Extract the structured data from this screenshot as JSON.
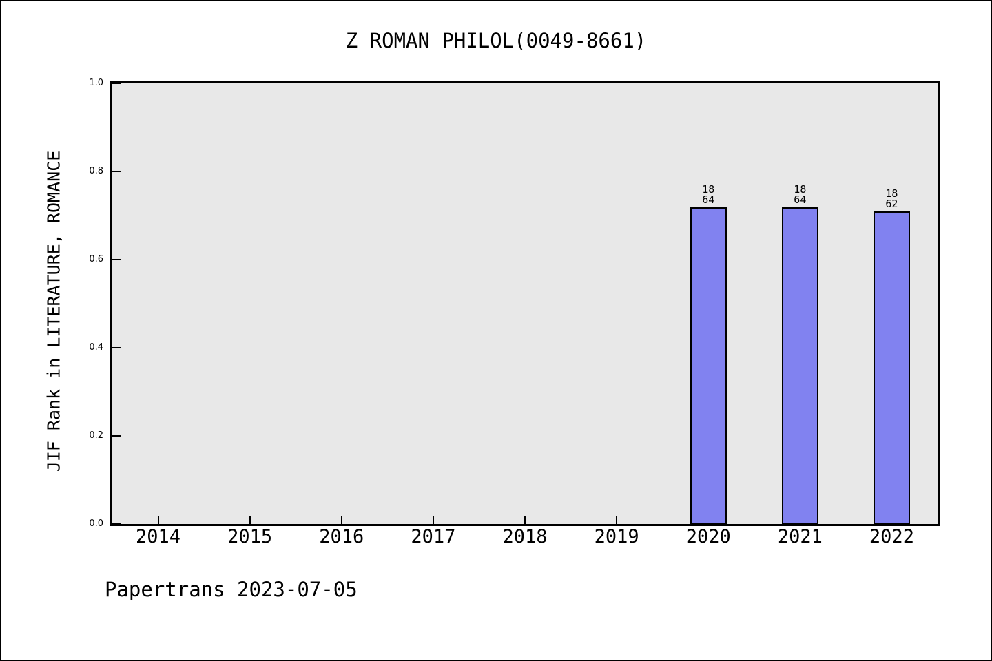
{
  "title": "Z ROMAN PHILOL(0049-8661)",
  "footer": {
    "text": "Papertrans 2023-07-05"
  },
  "colors": {
    "page_background": "#ffffff",
    "frame_border": "#000000",
    "plot_background": "#e8e8e8",
    "axis_color": "#000000",
    "bar_fill": "#8182f0",
    "bar_edge": "#000000",
    "text_color": "#000000"
  },
  "chart_data": {
    "type": "bar",
    "title": "Z ROMAN PHILOL(0049-8661)",
    "xlabel": "",
    "ylabel": "JIF Rank in LITERATURE, ROMANCE",
    "categories": [
      "2014",
      "2015",
      "2016",
      "2017",
      "2018",
      "2019",
      "2020",
      "2021",
      "2022"
    ],
    "values": [
      null,
      null,
      null,
      null,
      null,
      null,
      0.71875,
      0.71875,
      0.709677
    ],
    "bars": [
      {
        "category": "2020",
        "value": 0.71875,
        "rank": "18",
        "total": "64"
      },
      {
        "category": "2021",
        "value": 0.71875,
        "rank": "18",
        "total": "64"
      },
      {
        "category": "2022",
        "value": 0.709677,
        "rank": "18",
        "total": "62"
      }
    ],
    "ylim": [
      0.0,
      1.0
    ],
    "yticks": [
      "0.0",
      "0.2",
      "0.4",
      "0.6",
      "0.8",
      "1.0"
    ],
    "grid": false,
    "legend": null,
    "bar_width_fraction": 0.4
  }
}
